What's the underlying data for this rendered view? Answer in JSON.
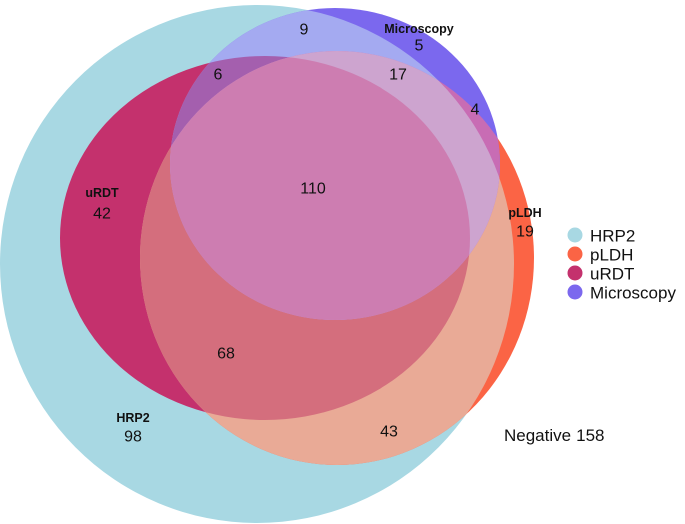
{
  "sets": [
    {
      "name": "HRP2",
      "color": "#a8d8e3",
      "count": 98
    },
    {
      "name": "pLDH",
      "color": "#fb6445",
      "count": 19
    },
    {
      "name": "uRDT",
      "color": "#c4316d",
      "count": 42
    },
    {
      "name": "Microscopy",
      "color": "#7b68ee",
      "count": 5
    }
  ],
  "intersections": {
    "hrp2_microscopy": {
      "count": 9,
      "color": "#a4aaf1"
    },
    "hrp2_urdt_microscopy": {
      "count": 6,
      "color": "#a45fae"
    },
    "hrp2_pldh_microscopy": {
      "count": 17,
      "color": "#cda4cf"
    },
    "pldh_microscopy": {
      "count": 4,
      "color": "#c86cb4"
    },
    "all_four": {
      "count": 110,
      "color": "#cd7db1"
    },
    "hrp2_pldh_urdt": {
      "count": 68,
      "color": "#d46e7d"
    },
    "hrp2_pldh": {
      "count": 43,
      "color": "#e9aa96"
    }
  },
  "negative": {
    "label": "Negative",
    "count": 158
  }
}
